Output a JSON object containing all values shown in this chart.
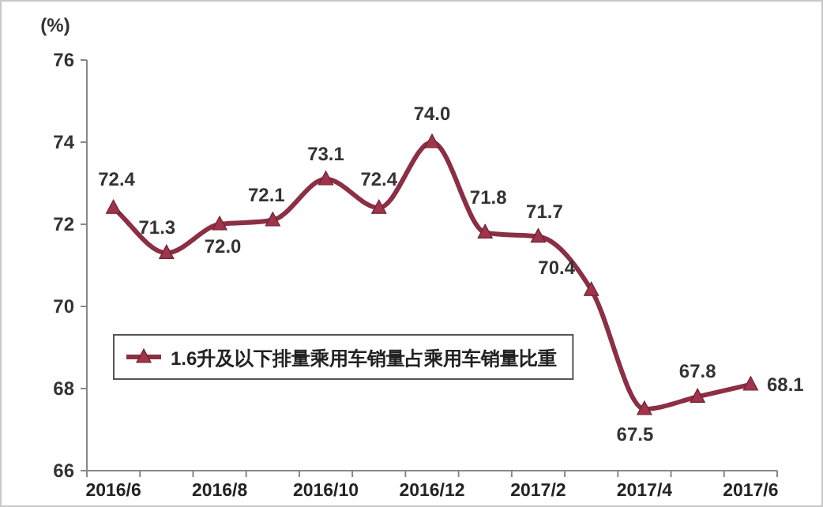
{
  "chart_data": {
    "type": "line",
    "ylabel": "(%)",
    "categories": [
      "2016/6",
      null,
      "2016/8",
      null,
      "2016/10",
      null,
      "2016/12",
      null,
      "2017/2",
      null,
      "2017/4",
      null,
      "2017/6"
    ],
    "series": [
      {
        "name": "1.6升及以下排量乘用车销量占乘用车销量比重",
        "color": "#8b2f45",
        "values": [
          72.4,
          71.3,
          72.0,
          72.1,
          73.1,
          72.4,
          74.0,
          71.8,
          71.7,
          70.4,
          67.5,
          67.8,
          68.1
        ],
        "value_labels": [
          "72.4",
          "71.3",
          "72.0",
          "72.1",
          "73.1",
          "72.4",
          "74.0",
          "71.8",
          "71.7",
          "70.4",
          "67.5",
          "67.8",
          "68.1"
        ]
      }
    ],
    "ylim": [
      66,
      76
    ],
    "yticks": [
      66,
      68,
      70,
      72,
      74,
      76
    ],
    "marker": "triangle",
    "line_style": "solid",
    "grid": false,
    "legend": "bottom left"
  }
}
